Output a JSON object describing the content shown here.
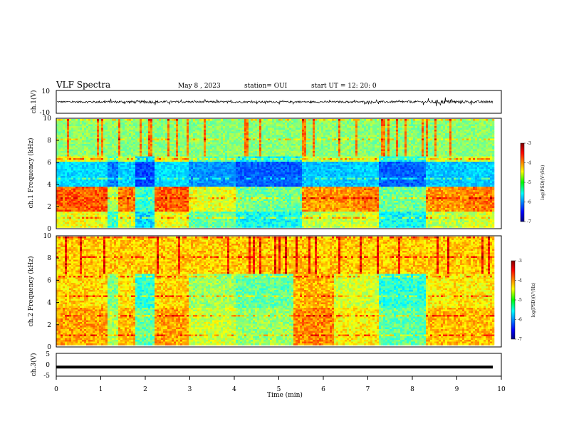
{
  "header": {
    "title": "VLF Spectra",
    "date": "May 8 , 2023",
    "station": "station= OUI",
    "start": "start UT = 12: 20: 0"
  },
  "chart_data": [
    {
      "type": "line",
      "name": "ch1-waveform",
      "ylabel": "ch.1(V)",
      "ylim": [
        -10,
        10
      ],
      "y_ticks": [
        "10",
        "-10"
      ],
      "xlim": [
        0,
        10
      ],
      "description_values": {
        "x": [
          0,
          1.1,
          2.0,
          2.6,
          4.2,
          6.1,
          8.3,
          8.6,
          9.2,
          9.8
        ],
        "amplitude_V": [
          2,
          3,
          4,
          3,
          2.5,
          2.5,
          3,
          6,
          4,
          3
        ]
      }
    },
    {
      "type": "heatmap",
      "name": "ch1-spectrogram",
      "ylabel": "ch.1 Frequency (kHz)",
      "ylim": [
        0,
        10
      ],
      "y_ticks": [
        "0",
        "2",
        "4",
        "6",
        "8",
        "10"
      ],
      "xlim": [
        0,
        9.8
      ],
      "colorbar": {
        "label": "log(PSD)(V²/Hz)",
        "range": [
          -7,
          -3
        ],
        "ticks": [
          "-3",
          "-4",
          "-5",
          "-6",
          "-7"
        ]
      },
      "segments_min": [
        0,
        1.15,
        1.35,
        1.75,
        2.2,
        2.95,
        4.0,
        5.5,
        6.7,
        7.2,
        8.3,
        9.2,
        9.8
      ],
      "segment_intensity": [
        0.85,
        0.45,
        0.8,
        0.25,
        0.85,
        0.55,
        0.35,
        0.75,
        0.8,
        0.35,
        0.75,
        0.8
      ],
      "dark_band_khz": [
        3.8,
        6.0
      ]
    },
    {
      "type": "heatmap",
      "name": "ch2-spectrogram",
      "ylabel": "ch.2 Frequency (kHz)",
      "ylim": [
        0,
        10
      ],
      "y_ticks": [
        "0",
        "2",
        "4",
        "6",
        "8",
        "10"
      ],
      "xlim": [
        0,
        9.8
      ],
      "colorbar": {
        "label": "log(PSD)(V²/Hz)",
        "range": [
          -7,
          -3
        ],
        "ticks": [
          "-3",
          "-4",
          "-5",
          "-6",
          "-7"
        ]
      },
      "segments_min": [
        0,
        1.15,
        1.35,
        1.75,
        2.2,
        2.95,
        4.0,
        5.3,
        6.2,
        7.2,
        8.3,
        9.8
      ],
      "segment_intensity": [
        0.8,
        0.5,
        0.75,
        0.35,
        0.8,
        0.55,
        0.45,
        0.85,
        0.65,
        0.35,
        0.75
      ],
      "high_band_khz": [
        6.5,
        10
      ]
    },
    {
      "type": "line",
      "name": "ch3-waveform",
      "ylabel": "ch.3(V)",
      "ylim": [
        -5,
        5
      ],
      "y_ticks": [
        "5",
        "0",
        "-5"
      ],
      "xlim": [
        0,
        10
      ],
      "constant_value_V": -1
    }
  ],
  "xaxis": {
    "label": "Time (min)",
    "ticks": [
      "0",
      "1",
      "2",
      "3",
      "4",
      "5",
      "6",
      "7",
      "8",
      "9",
      "10"
    ]
  }
}
